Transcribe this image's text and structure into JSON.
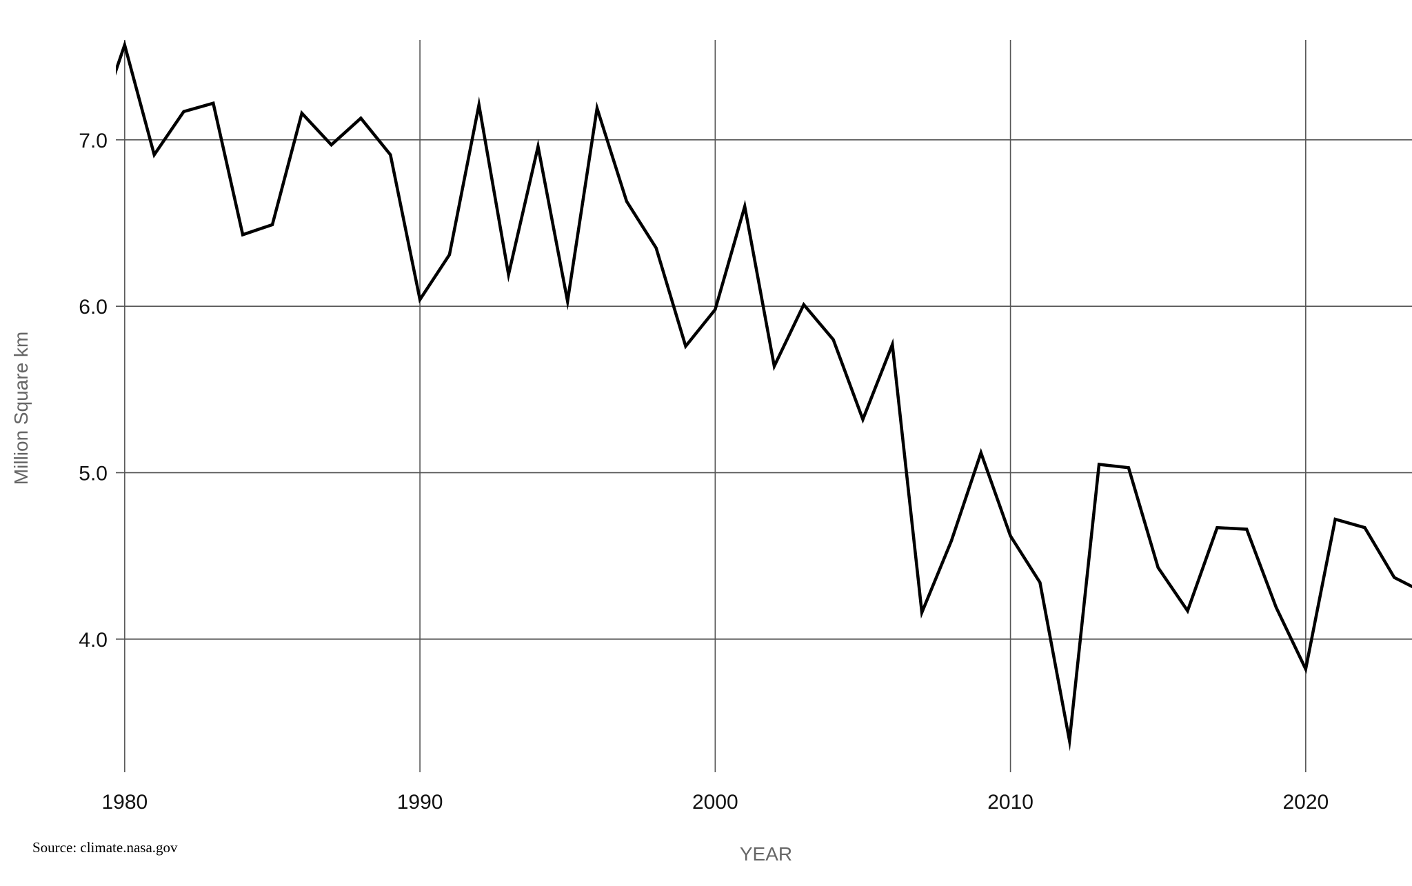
{
  "source_note": "Source: climate.nasa.gov",
  "chart_data": {
    "type": "line",
    "title": "",
    "xlabel": "YEAR",
    "ylabel": "Million Square km",
    "xlim": [
      1979.7,
      2023.6
    ],
    "ylim": [
      3.2,
      7.6
    ],
    "x_ticks": [
      1980,
      1990,
      2000,
      2010,
      2020
    ],
    "y_ticks": [
      4.0,
      5.0,
      6.0,
      7.0
    ],
    "x_tick_labels": [
      "1980",
      "1990",
      "2000",
      "2010",
      "2020"
    ],
    "y_tick_labels": [
      "4.0",
      "5.0",
      "6.0",
      "7.0"
    ],
    "grid": true,
    "legend": "none",
    "series": [
      {
        "color": "#000000",
        "x": [
          1979,
          1980,
          1981,
          1982,
          1983,
          1984,
          1985,
          1986,
          1987,
          1988,
          1989,
          1990,
          1991,
          1992,
          1993,
          1994,
          1995,
          1996,
          1997,
          1998,
          1999,
          2000,
          2001,
          2002,
          2003,
          2004,
          2005,
          2006,
          2007,
          2008,
          2009,
          2010,
          2011,
          2012,
          2013,
          2014,
          2015,
          2016,
          2017,
          2018,
          2019,
          2020,
          2021,
          2022,
          2023,
          2024
        ],
        "values": [
          7.05,
          7.57,
          6.91,
          7.17,
          7.22,
          6.43,
          6.49,
          7.16,
          6.97,
          7.13,
          6.91,
          6.04,
          6.31,
          7.21,
          6.19,
          6.96,
          6.03,
          7.19,
          6.63,
          6.35,
          5.76,
          5.98,
          6.6,
          5.64,
          6.01,
          5.8,
          5.32,
          5.77,
          4.16,
          4.59,
          5.12,
          4.62,
          4.34,
          3.39,
          5.05,
          5.03,
          4.43,
          4.17,
          4.67,
          4.66,
          4.19,
          3.82,
          4.72,
          4.67,
          4.37,
          4.28
        ]
      }
    ]
  }
}
